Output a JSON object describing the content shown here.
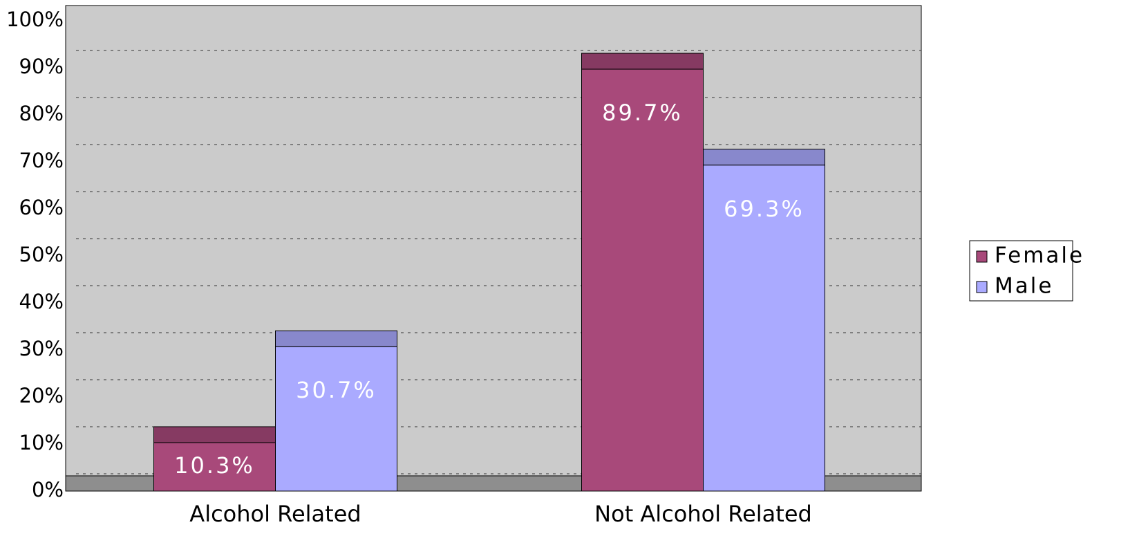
{
  "chart_data": {
    "type": "bar",
    "categories": [
      "Alcohol Related",
      "Not Alcohol Related"
    ],
    "series": [
      {
        "name": "Female",
        "color": "#a8497a",
        "values": [
          10.3,
          89.7
        ],
        "value_labels": [
          "10.3%",
          "89.7%"
        ]
      },
      {
        "name": "Male",
        "color": "#aaaaff",
        "values": [
          30.7,
          69.3
        ],
        "value_labels": [
          "30.7%",
          "69.3%"
        ]
      }
    ],
    "ylim": [
      0,
      100
    ],
    "yticks": [
      {
        "value": 0,
        "label": "0%"
      },
      {
        "value": 10,
        "label": "10%"
      },
      {
        "value": 20,
        "label": "20%"
      },
      {
        "value": 30,
        "label": "30%"
      },
      {
        "value": 40,
        "label": "40%"
      },
      {
        "value": 50,
        "label": "50%"
      },
      {
        "value": 60,
        "label": "60%"
      },
      {
        "value": 70,
        "label": "70%"
      },
      {
        "value": 80,
        "label": "80%"
      },
      {
        "value": 90,
        "label": "90%"
      },
      {
        "value": 100,
        "label": "100%"
      }
    ],
    "grid": true,
    "legend": "right"
  }
}
